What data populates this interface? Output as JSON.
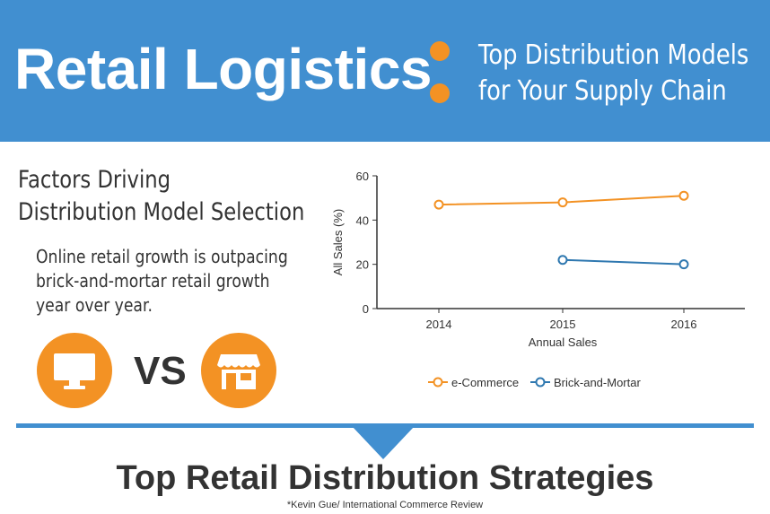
{
  "header": {
    "title": "Retail Logistics",
    "subtitle_line1": "Top Distribution Models",
    "subtitle_line2": "for Your Supply Chain"
  },
  "factors": {
    "heading_line1": "Factors Driving",
    "heading_line2": "Distribution Model Selection",
    "body_line1": "Online retail growth is outpacing",
    "body_line2": "brick-and-mortar retail growth",
    "body_line3": "year over year.",
    "vs_label": "VS"
  },
  "icons": {
    "left": "computer-monitor-icon",
    "right": "storefront-icon"
  },
  "colors": {
    "header_bg": "#418fd0",
    "accent_orange": "#f39224",
    "ecommerce": "#f39224",
    "brick_and_mortar": "#2f78b0"
  },
  "chart_data": {
    "type": "line",
    "x": [
      "2014",
      "2015",
      "2016"
    ],
    "series": [
      {
        "name": "e-Commerce",
        "values": [
          47,
          48,
          51
        ]
      },
      {
        "name": "Brick-and-Mortar",
        "values": [
          null,
          22,
          20
        ]
      }
    ],
    "xlabel": "Annual Sales",
    "ylabel": "All Sales (%)",
    "ylim": [
      0,
      60
    ],
    "yticks": [
      "0",
      "20",
      "40",
      "60"
    ],
    "grid": false,
    "legend": "bottom"
  },
  "bottom": {
    "title": "Top Retail Distribution Strategies",
    "source": "*Kevin Gue/ International Commerce Review"
  }
}
